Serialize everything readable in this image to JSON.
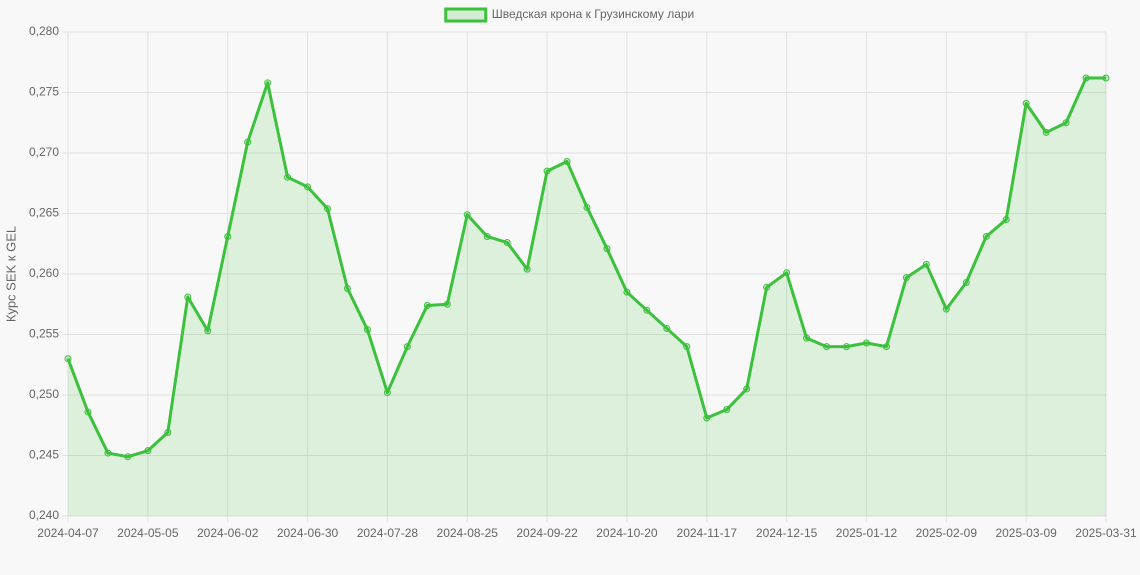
{
  "chart_data": {
    "type": "line",
    "y_axis_label": "Курс SEK к GEL",
    "categories": [
      "2024-04-07",
      null,
      null,
      null,
      "2024-05-05",
      null,
      null,
      null,
      "2024-06-02",
      null,
      null,
      null,
      "2024-06-30",
      null,
      null,
      null,
      "2024-07-28",
      null,
      null,
      null,
      "2024-08-25",
      null,
      null,
      null,
      "2024-09-22",
      null,
      null,
      null,
      "2024-10-20",
      null,
      null,
      null,
      "2024-11-17",
      null,
      null,
      null,
      "2024-12-15",
      null,
      null,
      null,
      "2025-01-12",
      null,
      null,
      null,
      "2025-02-09",
      null,
      null,
      null,
      "2025-03-09",
      null,
      null,
      null,
      "2025-03-31"
    ],
    "series": [
      {
        "name": "Шведская крона к Грузинскому лари",
        "color": "#3cc13c",
        "fill": true,
        "values": [
          0.253,
          0.2486,
          0.2452,
          0.2449,
          0.2454,
          0.2469,
          0.2581,
          0.2553,
          0.2631,
          0.2709,
          0.2758,
          0.268,
          0.2672,
          0.2654,
          0.2588,
          0.2554,
          0.2502,
          0.254,
          0.2574,
          0.2575,
          0.2649,
          0.2631,
          0.2626,
          0.2604,
          0.2685,
          0.2693,
          0.2655,
          0.2621,
          0.2585,
          0.257,
          0.2555,
          0.254,
          0.2481,
          0.2488,
          0.2505,
          0.2589,
          0.2601,
          0.2547,
          0.254,
          0.254,
          0.2543,
          0.254,
          0.2597,
          0.2608,
          0.2571,
          0.2593,
          0.2631,
          0.2645,
          0.2741,
          0.2717,
          0.2725,
          0.2762,
          0.2762
        ]
      }
    ],
    "ylim": [
      0.24,
      0.28
    ],
    "yticks": [
      {
        "value": 0.24,
        "label": "0,240"
      },
      {
        "value": 0.245,
        "label": "0,245"
      },
      {
        "value": 0.25,
        "label": "0,250"
      },
      {
        "value": 0.255,
        "label": "0,255"
      },
      {
        "value": 0.26,
        "label": "0,260"
      },
      {
        "value": 0.265,
        "label": "0,265"
      },
      {
        "value": 0.27,
        "label": "0,270"
      },
      {
        "value": 0.275,
        "label": "0,275"
      },
      {
        "value": 0.28,
        "label": "0,280"
      }
    ],
    "grid": true,
    "legend": "top"
  }
}
